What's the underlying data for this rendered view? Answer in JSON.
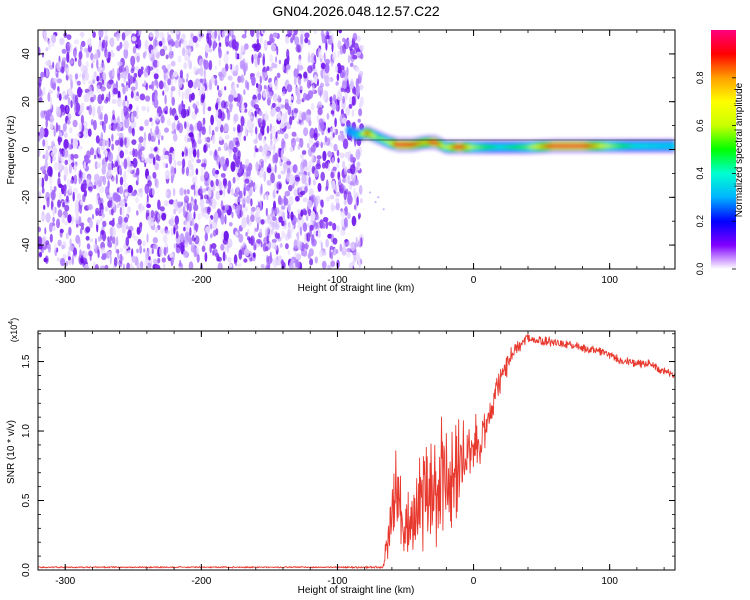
{
  "title": "GN04.2026.048.12.57.C22",
  "chart_data": [
    {
      "type": "heatmap",
      "name": "spectrogram",
      "xlabel": "Height of straight line (km)",
      "ylabel": "Frequency (Hz)",
      "xlim": [
        -320,
        148
      ],
      "ylim": [
        -50,
        50
      ],
      "xticks": [
        -300,
        -200,
        -100,
        0,
        100
      ],
      "yticks": [
        -40,
        -20,
        0,
        20,
        40
      ],
      "xtick_labels": [
        "-300",
        "-200",
        "-100",
        "0",
        "100"
      ],
      "ytick_labels": [
        "-40",
        "-20",
        "0",
        "20",
        "40"
      ],
      "noise_region_x": [
        -320,
        -82
      ],
      "signal_line": {
        "x": [
          -92,
          -85,
          -78,
          -70,
          -62,
          -55,
          -45,
          -35,
          -28,
          -20,
          -10,
          0,
          20,
          40,
          60,
          80,
          100,
          120,
          148
        ],
        "freq_hz": [
          8,
          6,
          7,
          5,
          3,
          2,
          2,
          3,
          3,
          1,
          1,
          1,
          1,
          1,
          1.5,
          1.5,
          1.5,
          1.5,
          1.5
        ],
        "amplitude": [
          0.25,
          0.35,
          0.85,
          0.55,
          0.6,
          0.95,
          0.9,
          0.75,
          0.95,
          0.6,
          0.95,
          0.6,
          0.4,
          0.55,
          0.95,
          0.95,
          0.6,
          0.4,
          0.35
        ]
      }
    },
    {
      "type": "line",
      "name": "snr",
      "xlabel": "Height of straight line (km)",
      "ylabel": "SNR (10 * v/v)",
      "multiplier_label": "(x10",
      "multiplier_exp": "4",
      "xlim": [
        -320,
        148
      ],
      "ylim": [
        0,
        1.72
      ],
      "xticks": [
        -300,
        -200,
        -100,
        0,
        100
      ],
      "yticks": [
        0,
        0.5,
        1.0,
        1.5
      ],
      "xtick_labels": [
        "-300",
        "-200",
        "-100",
        "0",
        "100"
      ],
      "ytick_labels": [
        "0.0",
        "0.5",
        "1.0",
        "1.5"
      ],
      "series": [
        {
          "name": "SNR",
          "color": "#e8392f",
          "x": [
            -320,
            -200,
            -100,
            -67,
            -63,
            -60,
            -57,
            -54,
            -50,
            -45,
            -40,
            -35,
            -30,
            -25,
            -20,
            -15,
            -10,
            -5,
            0,
            5,
            10,
            15,
            20,
            25,
            30,
            35,
            40,
            50,
            60,
            70,
            80,
            90,
            100,
            110,
            120,
            130,
            140,
            148
          ],
          "y": [
            0.02,
            0.02,
            0.02,
            0.02,
            0.2,
            0.42,
            0.58,
            0.45,
            0.3,
            0.36,
            0.45,
            0.5,
            0.55,
            0.7,
            0.6,
            0.65,
            0.78,
            0.82,
            0.88,
            0.95,
            1.05,
            1.2,
            1.38,
            1.48,
            1.58,
            1.63,
            1.67,
            1.65,
            1.64,
            1.62,
            1.6,
            1.58,
            1.55,
            1.5,
            1.49,
            1.48,
            1.43,
            1.4
          ],
          "amp": [
            0.005,
            0.005,
            0.005,
            0.01,
            0.12,
            0.22,
            0.28,
            0.28,
            0.28,
            0.3,
            0.32,
            0.38,
            0.4,
            0.45,
            0.42,
            0.38,
            0.32,
            0.28,
            0.22,
            0.18,
            0.14,
            0.12,
            0.1,
            0.08,
            0.06,
            0.05,
            0.04,
            0.035,
            0.035,
            0.035,
            0.03,
            0.03,
            0.03,
            0.03,
            0.03,
            0.03,
            0.03,
            0.03
          ]
        }
      ]
    },
    {
      "type": "colorbar",
      "name": "colorbar",
      "label": "Normalized spectral amplitude",
      "range": [
        0,
        1
      ],
      "ticks": [
        0,
        0.2,
        0.4,
        0.6,
        0.8
      ],
      "tick_labels": [
        "0.0",
        "0.2",
        "0.4",
        "0.6",
        "0.8"
      ],
      "colors": [
        "#ffffff",
        "#8000ff",
        "#0000ff",
        "#00b4ff",
        "#00ffd0",
        "#00ff00",
        "#c8ff00",
        "#ffff00",
        "#ffa000",
        "#ff0000",
        "#ff0080"
      ]
    }
  ]
}
